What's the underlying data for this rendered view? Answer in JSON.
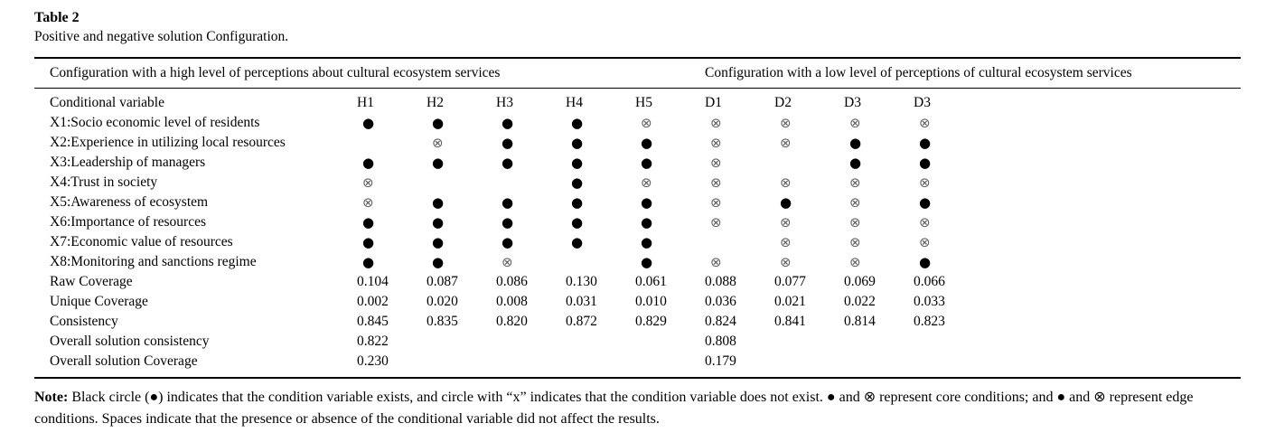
{
  "paper_table": {
    "label": "Table 2",
    "caption": "Positive and negative solution Configuration.",
    "group_headers": {
      "high": "Configuration with a high level of perceptions about cultural ecosystem services",
      "low": "Configuration with a low level of perceptions of cultural ecosystem services"
    },
    "column_headers": [
      "Conditional variable",
      "H1",
      "H2",
      "H3",
      "H4",
      "H5",
      "D1",
      "D2",
      "D3",
      "D3"
    ],
    "symbols": {
      "present": "●",
      "absent": "⊗"
    },
    "rows": [
      {
        "label": "X1:Socio economic level of residents",
        "cells": [
          "dot",
          "dot",
          "dot",
          "dot",
          "x",
          "x",
          "x",
          "x",
          "x"
        ]
      },
      {
        "label": "X2:Experience in utilizing local resources",
        "cells": [
          "",
          "x",
          "dot",
          "dot",
          "dot",
          "x",
          "x",
          "dot",
          "dot"
        ]
      },
      {
        "label": "X3:Leadership of managers",
        "cells": [
          "dot",
          "dot",
          "dot",
          "dot",
          "dot",
          "x",
          "",
          "dot",
          "dot"
        ]
      },
      {
        "label": "X4:Trust in society",
        "cells": [
          "x",
          "",
          "",
          "dot",
          "x",
          "x",
          "x",
          "x",
          "x"
        ]
      },
      {
        "label": "X5:Awareness of ecosystem",
        "cells": [
          "x",
          "dot",
          "dot",
          "dot",
          "dot",
          "x",
          "dot",
          "x",
          "dot"
        ]
      },
      {
        "label": "X6:Importance of resources",
        "cells": [
          "dot",
          "dot",
          "dot",
          "dot",
          "dot",
          "x",
          "x",
          "x",
          "x"
        ]
      },
      {
        "label": "X7:Economic value of resources",
        "cells": [
          "dot",
          "dot",
          "dot",
          "dot",
          "dot",
          "",
          "x",
          "x",
          "x"
        ]
      },
      {
        "label": "X8:Monitoring and sanctions regime",
        "cells": [
          "dot",
          "dot",
          "x",
          "",
          "dot",
          "x",
          "x",
          "x",
          "dot"
        ]
      },
      {
        "label": "Raw Coverage",
        "cells": [
          "0.104",
          "0.087",
          "0.086",
          "0.130",
          "0.061",
          "0.088",
          "0.077",
          "0.069",
          "0.066"
        ]
      },
      {
        "label": "Unique Coverage",
        "cells": [
          "0.002",
          "0.020",
          "0.008",
          "0.031",
          "0.010",
          "0.036",
          "0.021",
          "0.022",
          "0.033"
        ]
      },
      {
        "label": "Consistency",
        "cells": [
          "0.845",
          "0.835",
          "0.820",
          "0.872",
          "0.829",
          "0.824",
          "0.841",
          "0.814",
          "0.823"
        ]
      },
      {
        "label": "Overall solution consistency",
        "cells": [
          "0.822",
          "",
          "",
          "",
          "",
          "0.808",
          "",
          "",
          ""
        ]
      },
      {
        "label": "Overall solution Coverage",
        "cells": [
          "0.230",
          "",
          "",
          "",
          "",
          "0.179",
          "",
          "",
          ""
        ]
      }
    ],
    "note": {
      "label": "Note:",
      "text": " Black circle (●) indicates that the condition variable exists, and circle with “x” indicates that the condition variable does not exist. ● and ⊗ represent core conditions; and ● and ⊗ represent edge conditions. Spaces indicate that the presence or absence of the conditional variable did not affect the results."
    }
  }
}
